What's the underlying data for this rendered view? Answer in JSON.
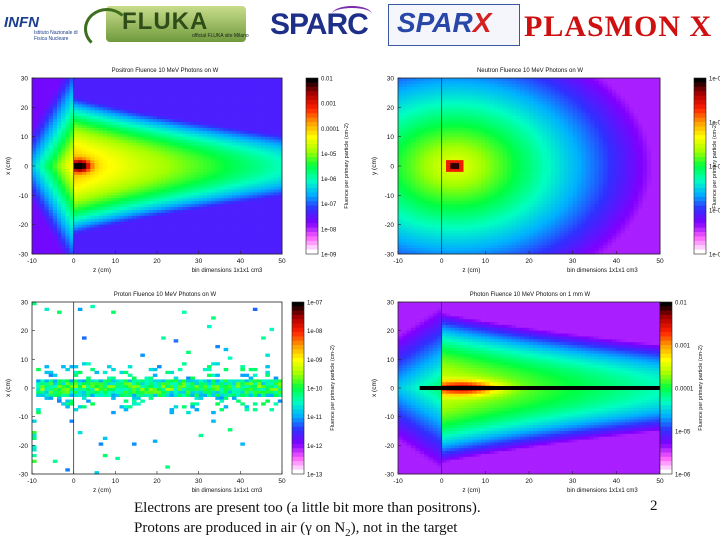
{
  "logos": {
    "infn": "INFN",
    "infn_sub": "Istituto Nazionale di Fisica Nucleare",
    "fluka": "FLUKA",
    "fluka_sub": "official FLUKA site Milano",
    "sparc": "SPARC",
    "sparx_main": "SPAR",
    "sparx_x": "X",
    "plasmon": "PLASMON X"
  },
  "caption": {
    "line1": "Electrons are present too (a little bit more than positrons).",
    "line2_a": "Protons are produced in air (γ on N",
    "line2_sub": "2",
    "line2_b": "), not in the target"
  },
  "page_number": "2",
  "colors": {
    "scale": [
      "#ffffff",
      "#ff60ff",
      "#8000ff",
      "#3030ff",
      "#00b0ff",
      "#00ffc0",
      "#00ff40",
      "#a0ff00",
      "#ffff00",
      "#ffa000",
      "#ff2000",
      "#b00000",
      "#000000"
    ]
  },
  "chart_data": [
    {
      "type": "heatmap",
      "title": "Positron Fluence 10 MeV Photons on W",
      "xlabel": "z (cm)",
      "ylabel": "x (cm)",
      "note": "bin dimensions 1x1x1 cm3",
      "colorbar_label": "Fluence per primary particle (cm-2)",
      "xlim": [
        -10,
        50
      ],
      "ylim": [
        -30,
        30
      ],
      "x_ticks": [
        "-10",
        "0",
        "10",
        "20",
        "30",
        "40",
        "50"
      ],
      "y_ticks": [
        "30",
        "20",
        "10",
        "0",
        "-10",
        "-20",
        "-30"
      ],
      "colorbar_ticks": [
        "0.01",
        "0.001",
        "0.0001",
        "1e-05",
        "1e-06",
        "1e-07",
        "1e-08",
        "1e-09"
      ],
      "log_color_scale": true
    },
    {
      "type": "heatmap",
      "title": "Neutron Fluence 10 MeV Photons on W",
      "xlabel": "z (cm)",
      "ylabel": "y (cm)",
      "note": "bin dimensions 1x1x1 cm3",
      "colorbar_label": "Fluence per primary particle (cm-2)",
      "xlim": [
        -10,
        50
      ],
      "ylim": [
        -30,
        30
      ],
      "x_ticks": [
        "-10",
        "0",
        "10",
        "20",
        "30",
        "40",
        "50"
      ],
      "y_ticks": [
        "30",
        "20",
        "10",
        "0",
        "-10",
        "-20",
        "-30"
      ],
      "colorbar_ticks": [
        "1e-05",
        "1e-06",
        "1e-07",
        "1e-08",
        "1e-09"
      ],
      "log_color_scale": true
    },
    {
      "type": "heatmap",
      "title": "Proton Fluence 10 MeV Photons on W",
      "xlabel": "z (cm)",
      "ylabel": "x (cm)",
      "note": "bin dimensions 1x1x1 cm3",
      "colorbar_label": "Fluence per primary particle (cm-2)",
      "xlim": [
        -10,
        50
      ],
      "ylim": [
        -30,
        30
      ],
      "x_ticks": [
        "-10",
        "0",
        "10",
        "20",
        "30",
        "40",
        "50"
      ],
      "y_ticks": [
        "30",
        "20",
        "10",
        "0",
        "-10",
        "-20",
        "-30"
      ],
      "colorbar_ticks": [
        "1e-07",
        "1e-08",
        "1e-09",
        "1e-10",
        "1e-11",
        "1e-12",
        "1e-13"
      ],
      "log_color_scale": true
    },
    {
      "type": "heatmap",
      "title": "Photon Fluence 10 MeV Photons on 1 mm W",
      "xlabel": "z (cm)",
      "ylabel": "x (cm)",
      "note": "bin dimensions 1x1x1 cm3",
      "colorbar_label": "Fluence per primary particle (cm-2)",
      "xlim": [
        -10,
        50
      ],
      "ylim": [
        -30,
        30
      ],
      "x_ticks": [
        "-10",
        "0",
        "10",
        "20",
        "30",
        "40",
        "50"
      ],
      "y_ticks": [
        "30",
        "20",
        "10",
        "0",
        "-10",
        "-20",
        "-30"
      ],
      "colorbar_ticks": [
        "0.01",
        "0.001",
        "0.0001",
        "1e-05",
        "1e-06"
      ],
      "log_color_scale": true
    }
  ]
}
